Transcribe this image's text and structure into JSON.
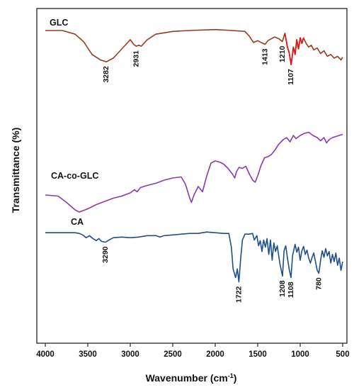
{
  "chart_data": {
    "type": "line",
    "title": "",
    "xlabel": "Wavenumber (cm",
    "xlabel_superscript": "-1",
    "xlabel_suffix": ")",
    "ylabel": "Transmittance (%)",
    "xlim": [
      4100,
      450
    ],
    "x_reversed": true,
    "xticks": [
      4000,
      3500,
      3000,
      2500,
      2000,
      1500,
      1000,
      500
    ],
    "y_ticks_shown": false,
    "series": [
      {
        "name": "GLC",
        "color": "#9b3a1c",
        "highlight_color": "#e01818",
        "highlight_range": [
          1180,
          960
        ],
        "points": [
          [
            4000,
            0.9
          ],
          [
            3800,
            0.9
          ],
          [
            3650,
            0.86
          ],
          [
            3550,
            0.78
          ],
          [
            3450,
            0.64
          ],
          [
            3350,
            0.58
          ],
          [
            3282,
            0.56
          ],
          [
            3200,
            0.6
          ],
          [
            3100,
            0.7
          ],
          [
            3000,
            0.8
          ],
          [
            2960,
            0.75
          ],
          [
            2931,
            0.73
          ],
          [
            2900,
            0.74
          ],
          [
            2870,
            0.73
          ],
          [
            2800,
            0.8
          ],
          [
            2700,
            0.86
          ],
          [
            2500,
            0.89
          ],
          [
            2300,
            0.9
          ],
          [
            2000,
            0.91
          ],
          [
            1800,
            0.9
          ],
          [
            1650,
            0.89
          ],
          [
            1600,
            0.84
          ],
          [
            1550,
            0.77
          ],
          [
            1500,
            0.79
          ],
          [
            1460,
            0.77
          ],
          [
            1413,
            0.75
          ],
          [
            1380,
            0.79
          ],
          [
            1300,
            0.83
          ],
          [
            1250,
            0.81
          ],
          [
            1210,
            0.78
          ],
          [
            1180,
            0.87
          ],
          [
            1150,
            0.72
          ],
          [
            1130,
            0.66
          ],
          [
            1107,
            0.53
          ],
          [
            1080,
            0.72
          ],
          [
            1060,
            0.64
          ],
          [
            1040,
            0.8
          ],
          [
            1020,
            0.7
          ],
          [
            1000,
            0.82
          ],
          [
            980,
            0.76
          ],
          [
            960,
            0.82
          ],
          [
            930,
            0.76
          ],
          [
            900,
            0.72
          ],
          [
            870,
            0.74
          ],
          [
            840,
            0.69
          ],
          [
            800,
            0.71
          ],
          [
            760,
            0.65
          ],
          [
            720,
            0.68
          ],
          [
            680,
            0.62
          ],
          [
            640,
            0.64
          ],
          [
            600,
            0.6
          ],
          [
            560,
            0.62
          ],
          [
            520,
            0.58
          ],
          [
            500,
            0.61
          ]
        ]
      },
      {
        "name": "CA-co-GLC",
        "color": "#8a3ab0",
        "points": [
          [
            4000,
            0.2
          ],
          [
            3850,
            0.19
          ],
          [
            3750,
            0.13
          ],
          [
            3650,
            0.06
          ],
          [
            3600,
            0.04
          ],
          [
            3500,
            0.07
          ],
          [
            3400,
            0.11
          ],
          [
            3300,
            0.14
          ],
          [
            3200,
            0.17
          ],
          [
            3100,
            0.19
          ],
          [
            3000,
            0.22
          ],
          [
            2950,
            0.25
          ],
          [
            2920,
            0.23
          ],
          [
            2880,
            0.27
          ],
          [
            2800,
            0.29
          ],
          [
            2700,
            0.31
          ],
          [
            2600,
            0.34
          ],
          [
            2500,
            0.36
          ],
          [
            2400,
            0.37
          ],
          [
            2350,
            0.3
          ],
          [
            2300,
            0.17
          ],
          [
            2280,
            0.13
          ],
          [
            2250,
            0.2
          ],
          [
            2200,
            0.28
          ],
          [
            2150,
            0.23
          ],
          [
            2100,
            0.38
          ],
          [
            2050,
            0.5
          ],
          [
            2000,
            0.52
          ],
          [
            1950,
            0.51
          ],
          [
            1900,
            0.49
          ],
          [
            1850,
            0.45
          ],
          [
            1800,
            0.4
          ],
          [
            1770,
            0.36
          ],
          [
            1750,
            0.42
          ],
          [
            1720,
            0.46
          ],
          [
            1680,
            0.45
          ],
          [
            1640,
            0.47
          ],
          [
            1600,
            0.4
          ],
          [
            1560,
            0.34
          ],
          [
            1530,
            0.32
          ],
          [
            1500,
            0.38
          ],
          [
            1460,
            0.48
          ],
          [
            1420,
            0.55
          ],
          [
            1380,
            0.56
          ],
          [
            1340,
            0.58
          ],
          [
            1300,
            0.62
          ],
          [
            1250,
            0.68
          ],
          [
            1200,
            0.72
          ],
          [
            1160,
            0.74
          ],
          [
            1120,
            0.7
          ],
          [
            1080,
            0.76
          ],
          [
            1050,
            0.73
          ],
          [
            1000,
            0.76
          ],
          [
            950,
            0.78
          ],
          [
            900,
            0.79
          ],
          [
            850,
            0.76
          ],
          [
            800,
            0.74
          ],
          [
            760,
            0.71
          ],
          [
            720,
            0.74
          ],
          [
            690,
            0.69
          ],
          [
            660,
            0.72
          ],
          [
            620,
            0.74
          ],
          [
            580,
            0.75
          ],
          [
            540,
            0.76
          ],
          [
            500,
            0.77
          ]
        ]
      },
      {
        "name": "CA",
        "color": "#1f4e8c",
        "points": [
          [
            4000,
            0.9
          ],
          [
            3800,
            0.9
          ],
          [
            3650,
            0.9
          ],
          [
            3600,
            0.89
          ],
          [
            3560,
            0.87
          ],
          [
            3520,
            0.83
          ],
          [
            3480,
            0.86
          ],
          [
            3440,
            0.82
          ],
          [
            3400,
            0.79
          ],
          [
            3370,
            0.82
          ],
          [
            3340,
            0.78
          ],
          [
            3290,
            0.77
          ],
          [
            3250,
            0.8
          ],
          [
            3200,
            0.83
          ],
          [
            3100,
            0.84
          ],
          [
            3000,
            0.83
          ],
          [
            2900,
            0.84
          ],
          [
            2800,
            0.86
          ],
          [
            2700,
            0.86
          ],
          [
            2650,
            0.84
          ],
          [
            2600,
            0.86
          ],
          [
            2500,
            0.87
          ],
          [
            2400,
            0.88
          ],
          [
            2300,
            0.89
          ],
          [
            2200,
            0.89
          ],
          [
            2100,
            0.91
          ],
          [
            2000,
            0.9
          ],
          [
            1900,
            0.89
          ],
          [
            1840,
            0.89
          ],
          [
            1810,
            0.7
          ],
          [
            1790,
            0.4
          ],
          [
            1760,
            0.28
          ],
          [
            1740,
            0.4
          ],
          [
            1722,
            0.22
          ],
          [
            1700,
            0.55
          ],
          [
            1680,
            0.8
          ],
          [
            1650,
            0.88
          ],
          [
            1600,
            0.88
          ],
          [
            1560,
            0.89
          ],
          [
            1540,
            0.8
          ],
          [
            1510,
            0.86
          ],
          [
            1490,
            0.72
          ],
          [
            1470,
            0.79
          ],
          [
            1450,
            0.64
          ],
          [
            1430,
            0.8
          ],
          [
            1410,
            0.7
          ],
          [
            1390,
            0.82
          ],
          [
            1370,
            0.6
          ],
          [
            1350,
            0.8
          ],
          [
            1330,
            0.52
          ],
          [
            1310,
            0.76
          ],
          [
            1290,
            0.64
          ],
          [
            1270,
            0.72
          ],
          [
            1240,
            0.48
          ],
          [
            1208,
            0.3
          ],
          [
            1190,
            0.65
          ],
          [
            1170,
            0.72
          ],
          [
            1150,
            0.55
          ],
          [
            1130,
            0.4
          ],
          [
            1108,
            0.28
          ],
          [
            1090,
            0.58
          ],
          [
            1060,
            0.74
          ],
          [
            1040,
            0.63
          ],
          [
            1020,
            0.7
          ],
          [
            1000,
            0.52
          ],
          [
            980,
            0.65
          ],
          [
            960,
            0.71
          ],
          [
            940,
            0.6
          ],
          [
            920,
            0.66
          ],
          [
            900,
            0.55
          ],
          [
            880,
            0.48
          ],
          [
            860,
            0.56
          ],
          [
            840,
            0.62
          ],
          [
            820,
            0.5
          ],
          [
            800,
            0.38
          ],
          [
            780,
            0.34
          ],
          [
            760,
            0.52
          ],
          [
            740,
            0.65
          ],
          [
            720,
            0.56
          ],
          [
            700,
            0.68
          ],
          [
            680,
            0.58
          ],
          [
            660,
            0.64
          ],
          [
            640,
            0.48
          ],
          [
            620,
            0.6
          ],
          [
            600,
            0.5
          ],
          [
            580,
            0.62
          ],
          [
            560,
            0.45
          ],
          [
            540,
            0.55
          ],
          [
            520,
            0.38
          ],
          [
            500,
            0.5
          ]
        ]
      }
    ],
    "annotations": [
      {
        "series": "GLC",
        "label": "3282",
        "x": 3282
      },
      {
        "series": "GLC",
        "label": "2931",
        "x": 2931
      },
      {
        "series": "GLC",
        "label": "1413",
        "x": 1413
      },
      {
        "series": "GLC",
        "label": "1210",
        "x": 1210
      },
      {
        "series": "GLC",
        "label": "1107",
        "x": 1107
      },
      {
        "series": "CA",
        "label": "3290",
        "x": 3290
      },
      {
        "series": "CA",
        "label": "1722",
        "x": 1722
      },
      {
        "series": "CA",
        "label": "1208",
        "x": 1208
      },
      {
        "series": "CA",
        "label": "1108",
        "x": 1108
      },
      {
        "series": "CA",
        "label": "780",
        "x": 780
      }
    ]
  }
}
